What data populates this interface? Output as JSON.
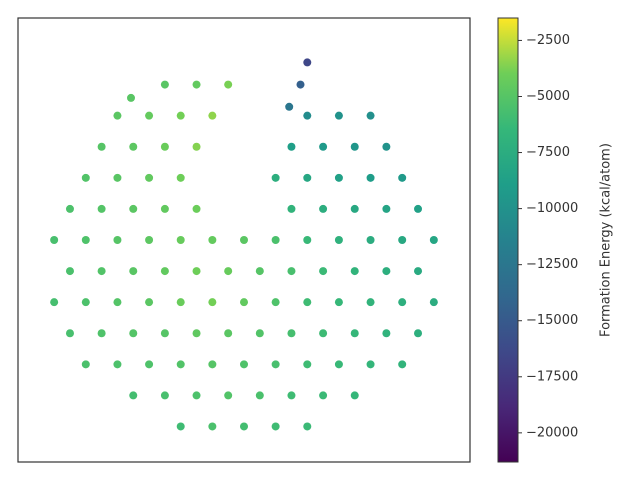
{
  "chart_data": {
    "type": "scatter",
    "x": [
      36,
      43,
      50,
      57,
      64,
      25.5,
      32.5,
      39.5,
      46.5,
      53.5,
      60.5,
      67.5,
      74.5,
      15,
      22,
      29,
      36,
      43,
      50,
      57,
      64,
      71,
      78,
      85,
      11.5,
      18.5,
      25.5,
      32.5,
      39.5,
      46.5,
      53.5,
      60.5,
      67.5,
      74.5,
      81.5,
      88.5,
      8,
      15,
      22,
      29,
      36,
      43,
      50,
      57,
      64,
      71,
      78,
      85,
      92,
      11.5,
      18.5,
      25.5,
      32.5,
      39.5,
      46.5,
      53.5,
      60.5,
      67.5,
      74.5,
      81.5,
      88.5,
      8,
      15,
      22,
      29,
      36,
      43,
      50,
      57,
      64,
      71,
      78,
      85,
      92,
      11.5,
      18.5,
      25.5,
      32.5,
      39.5,
      60.5,
      67.5,
      74.5,
      81.5,
      88.5,
      15,
      22,
      29,
      36,
      57,
      64,
      71,
      78,
      85,
      18.5,
      25.5,
      32.5,
      39.5,
      60.5,
      67.5,
      74.5,
      81.5,
      22,
      29,
      36,
      43,
      64,
      71,
      78,
      32.5,
      39.5,
      46.5,
      62.5,
      25,
      64,
      60
    ],
    "values": [
      8,
      8,
      8,
      8,
      8,
      15,
      15,
      15,
      15,
      15,
      15,
      15,
      15,
      22,
      22,
      22,
      22,
      22,
      22,
      22,
      22,
      22,
      22,
      22,
      29,
      29,
      29,
      29,
      29,
      29,
      29,
      29,
      29,
      29,
      29,
      29,
      36,
      36,
      36,
      36,
      36,
      36,
      36,
      36,
      36,
      36,
      36,
      36,
      36,
      43,
      43,
      43,
      43,
      43,
      43,
      43,
      43,
      43,
      43,
      43,
      43,
      50,
      50,
      50,
      50,
      50,
      50,
      50,
      50,
      50,
      50,
      50,
      50,
      50,
      57,
      57,
      57,
      57,
      57,
      57,
      57,
      57,
      57,
      57,
      64,
      64,
      64,
      64,
      64,
      64,
      64,
      64,
      64,
      71,
      71,
      71,
      71,
      71,
      71,
      71,
      71,
      78,
      78,
      78,
      78,
      78,
      78,
      78,
      85,
      85,
      85,
      85,
      82,
      90,
      80
    ],
    "color_values": [
      -6000,
      -5500,
      -5800,
      -6000,
      -6200,
      -5800,
      -5600,
      -5400,
      -5200,
      -5500,
      -6000,
      -6200,
      -6500,
      -5500,
      -5400,
      -5300,
      -5200,
      -5000,
      -5300,
      -5600,
      -6000,
      -6300,
      -6600,
      -6800,
      -5600,
      -5300,
      -5100,
      -5000,
      -4600,
      -4800,
      -5200,
      -5700,
      -6100,
      -6500,
      -6900,
      -7200,
      -5700,
      -5400,
      -5100,
      -4800,
      -4200,
      -3900,
      -4500,
      -5300,
      -6000,
      -6400,
      -6800,
      -7200,
      -7500,
      -5500,
      -5200,
      -4900,
      -4500,
      -4000,
      -4300,
      -5000,
      -5600,
      -6200,
      -6800,
      -7300,
      -7700,
      -5600,
      -5300,
      -5000,
      -4700,
      -4300,
      -4400,
      -4800,
      -5500,
      -6300,
      -7000,
      -7500,
      -7900,
      -8100,
      -5400,
      -5100,
      -4800,
      -4500,
      -4100,
      -6800,
      -7400,
      -7900,
      -8300,
      -8600,
      -5200,
      -4900,
      -4500,
      -4000,
      -7300,
      -8000,
      -8600,
      -9000,
      -9300,
      -5000,
      -4700,
      -4200,
      -3600,
      -8800,
      -9300,
      -9600,
      -9900,
      -4800,
      -4400,
      -3900,
      -3400,
      -10500,
      -10000,
      -10200,
      -4900,
      -4500,
      -3800,
      -14500,
      -4900,
      -16500,
      -12500
    ],
    "xlim": [
      0,
      100
    ],
    "ylim": [
      0,
      100
    ],
    "colorbar": {
      "label": "Formation Energy (kcal/atom)",
      "colormap": "viridis",
      "lim": [
        -21300,
        -1500
      ],
      "ticks": [
        {
          "value": -2500,
          "label": "−2500"
        },
        {
          "value": -5000,
          "label": "−5000"
        },
        {
          "value": -7500,
          "label": "−7500"
        },
        {
          "value": -10000,
          "label": "−10000"
        },
        {
          "value": -12500,
          "label": "−12500"
        },
        {
          "value": -15000,
          "label": "−15000"
        },
        {
          "value": -17500,
          "label": "−17500"
        },
        {
          "value": -20000,
          "label": "−20000"
        }
      ]
    }
  }
}
